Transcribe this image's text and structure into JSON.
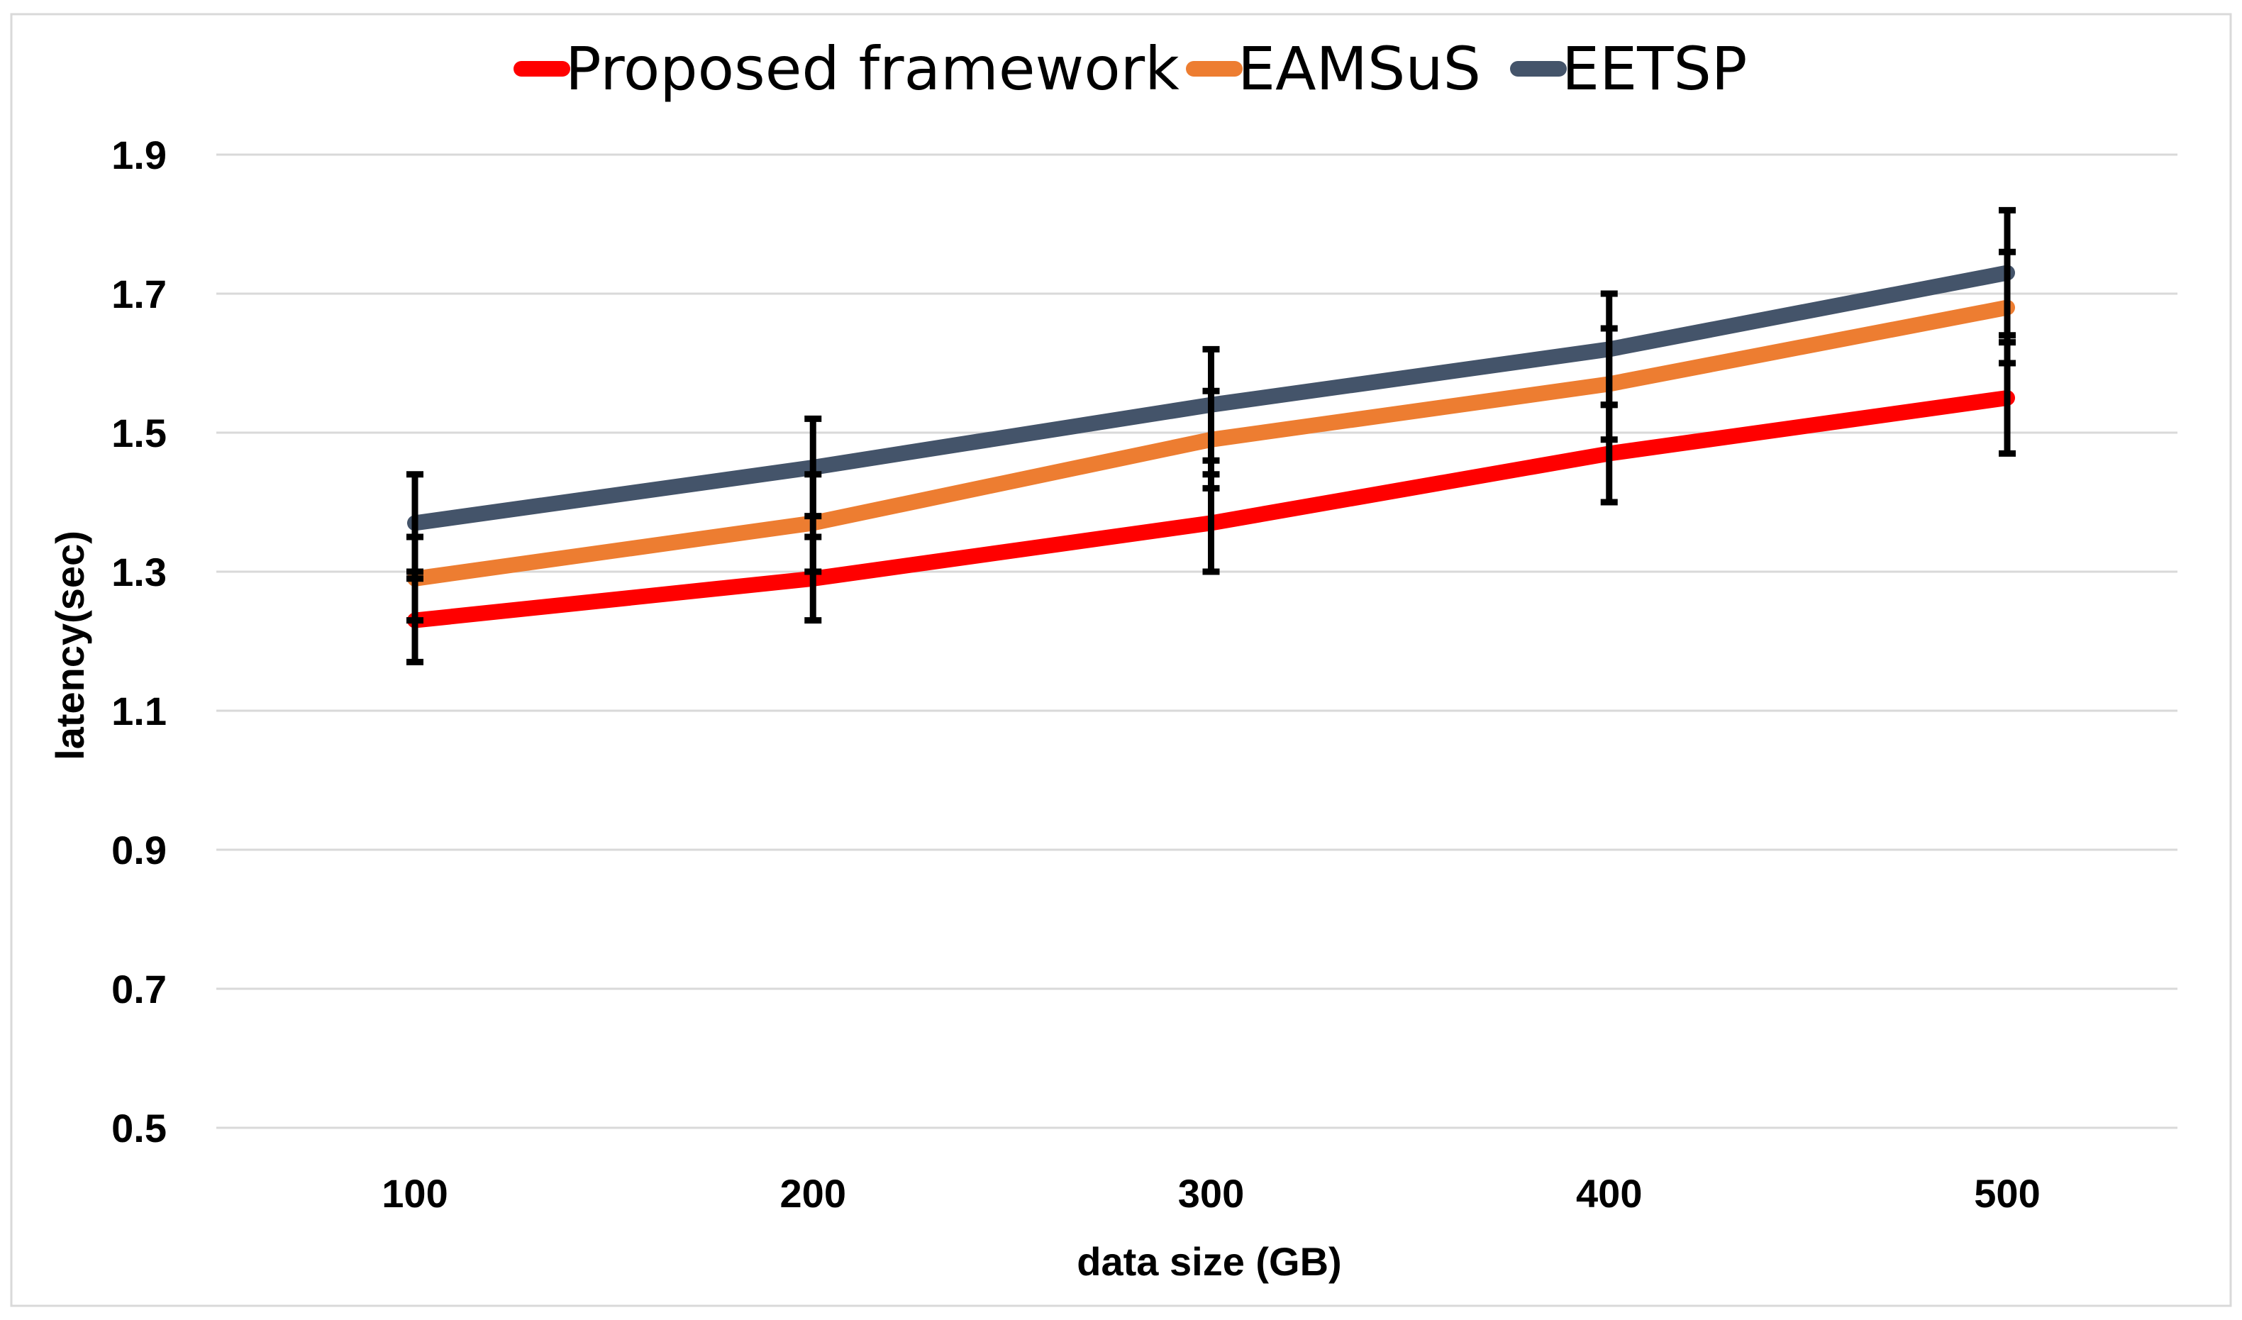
{
  "chart_data": {
    "type": "line",
    "title": "",
    "xlabel": "data size (GB)",
    "ylabel": "latency(sec)",
    "categories": [
      "100",
      "200",
      "300",
      "400",
      "500"
    ],
    "ylim": [
      0.5,
      1.9
    ],
    "yticks": [
      0.5,
      0.7,
      0.9,
      1.1,
      1.3,
      1.5,
      1.7,
      1.9
    ],
    "ytick_labels": [
      "0.5",
      "0.7",
      "0.9",
      "1.1",
      "1.3",
      "1.5",
      "1.7",
      "1.9"
    ],
    "grid": true,
    "legend_position": "top",
    "error_bars": true,
    "series": [
      {
        "name": "Proposed framework",
        "color": "#ff0000",
        "values": [
          1.23,
          1.29,
          1.37,
          1.47,
          1.55
        ],
        "error": [
          0.06,
          0.06,
          0.07,
          0.07,
          0.08
        ]
      },
      {
        "name": "EAMSuS",
        "color": "#ed7d31",
        "values": [
          1.29,
          1.37,
          1.49,
          1.57,
          1.68
        ],
        "error": [
          0.06,
          0.07,
          0.07,
          0.08,
          0.08
        ]
      },
      {
        "name": "EETSP",
        "color": "#44546a",
        "values": [
          1.37,
          1.45,
          1.54,
          1.62,
          1.73
        ],
        "error": [
          0.07,
          0.07,
          0.08,
          0.08,
          0.09
        ]
      }
    ]
  }
}
